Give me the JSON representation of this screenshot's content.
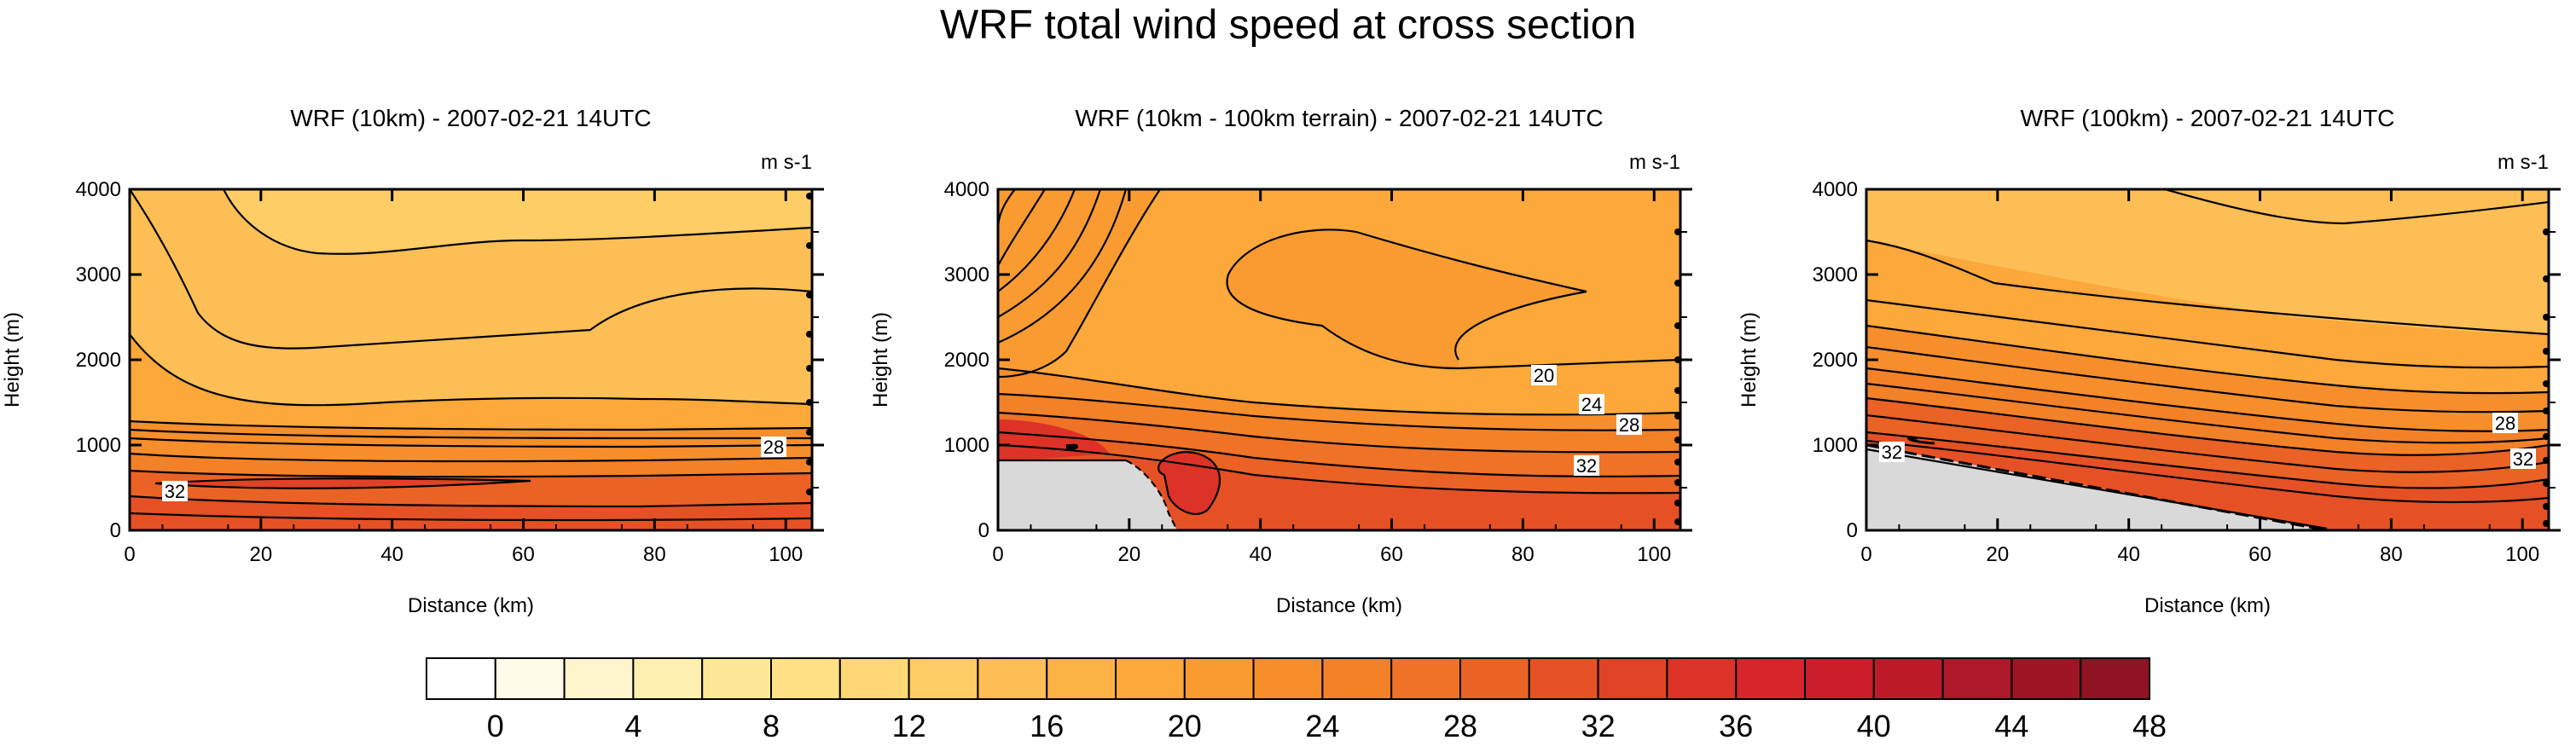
{
  "title": "WRF total wind speed at cross section",
  "panel_unit": "m s-1",
  "axes": {
    "xlabel": "Distance (km)",
    "ylabel": "Height (m)",
    "xticks": [
      0,
      20,
      40,
      60,
      80,
      100
    ],
    "yticks": [
      0,
      1000,
      2000,
      3000,
      4000
    ],
    "xlim": [
      0,
      104
    ],
    "ylim": [
      0,
      4000
    ]
  },
  "colorbar": {
    "levels": [
      0,
      2,
      4,
      6,
      8,
      10,
      12,
      14,
      16,
      18,
      20,
      22,
      24,
      26,
      28,
      30,
      32,
      34,
      36,
      38,
      40,
      42,
      44,
      46,
      48,
      50
    ],
    "tick_labels": [
      "0",
      "4",
      "8",
      "12",
      "16",
      "20",
      "24",
      "28",
      "32",
      "36",
      "40",
      "44",
      "48"
    ],
    "colors": [
      "#ffffff",
      "#fffbe8",
      "#fff5cc",
      "#ffefb0",
      "#fee898",
      "#fee085",
      "#fed873",
      "#fecd65",
      "#fdbf55",
      "#fdb246",
      "#fca83a",
      "#fa9b32",
      "#f78e2c",
      "#f38128",
      "#ef7226",
      "#ea6225",
      "#e55125",
      "#e04226",
      "#dd3228",
      "#d7262b",
      "#cc1e2a",
      "#bd1a29",
      "#ad1828",
      "#9e1526",
      "#8f1423"
    ],
    "terrain_color": "#d9d9d9"
  },
  "chart_data": [
    {
      "type": "contour",
      "title": "WRF (10km) - 2007-02-21 14UTC",
      "contour_labels": [
        {
          "text": "28",
          "x": 101,
          "y": 980
        },
        {
          "text": "32",
          "x": 7,
          "y": 450
        }
      ],
      "fill_bands": [
        {
          "value_range": [
            14,
            16
          ],
          "from": "top",
          "to_height": 3500
        },
        {
          "value_range": [
            16,
            18
          ],
          "to_height": 1550
        },
        {
          "value_range": [
            18,
            22
          ],
          "to_height": 1150
        },
        {
          "value_range": [
            22,
            28
          ],
          "to_height": 850
        },
        {
          "value_range": [
            28,
            34
          ],
          "to_height": 300
        },
        {
          "value_range": [
            34,
            36
          ],
          "core_height": 600,
          "core_x_range": [
            5,
            62
          ]
        }
      ]
    },
    {
      "type": "contour",
      "title": "WRF (10km - 100km terrain) - 2007-02-21 14UTC",
      "contour_labels": [
        {
          "text": "20",
          "x": 82,
          "y": 1800
        },
        {
          "text": "24",
          "x": 91,
          "y": 1450
        },
        {
          "text": "28",
          "x": 97,
          "y": 1200
        },
        {
          "text": "32",
          "x": 90,
          "y": 700
        }
      ],
      "terrain_profile": {
        "x": [
          0,
          20,
          24,
          28,
          104
        ],
        "height": [
          700,
          700,
          300,
          0,
          0
        ]
      }
    },
    {
      "type": "contour",
      "title": "WRF (100km) - 2007-02-21 14UTC",
      "contour_labels": [
        {
          "text": "32",
          "x": 5,
          "y": 760
        },
        {
          "text": "28",
          "x": 95,
          "y": 1250
        },
        {
          "text": "32",
          "x": 98,
          "y": 820
        }
      ],
      "terrain_profile": {
        "x": [
          0,
          70,
          104
        ],
        "height": [
          500,
          0,
          0
        ]
      }
    }
  ]
}
